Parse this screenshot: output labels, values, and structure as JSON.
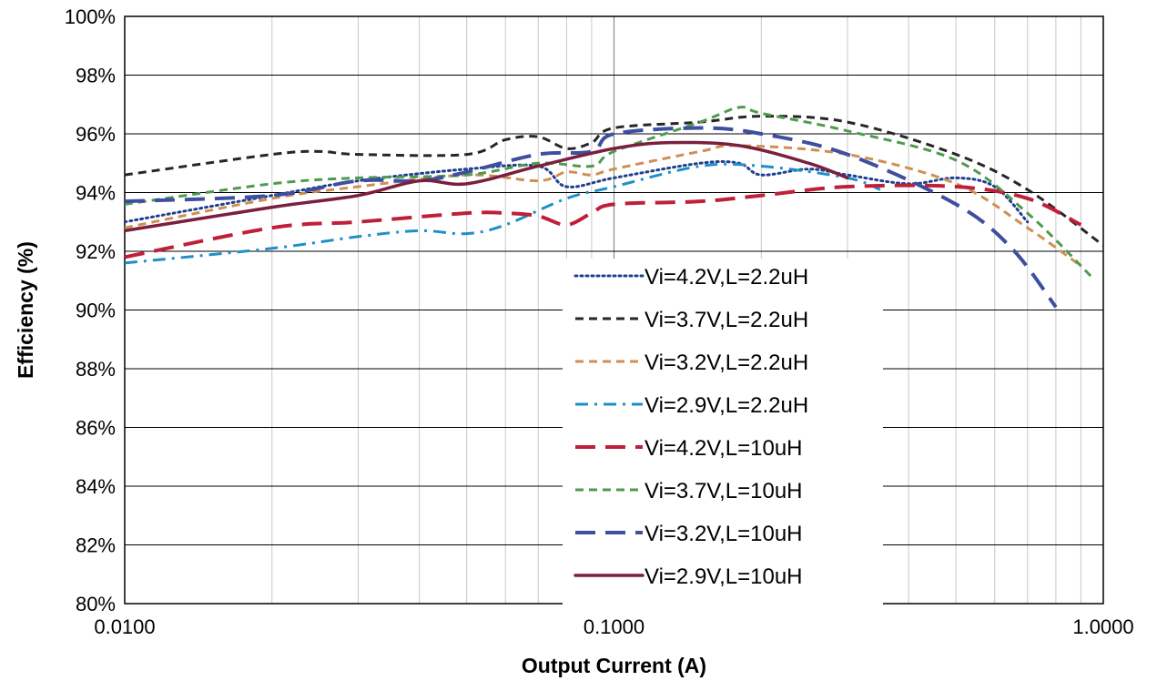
{
  "chart_data": {
    "type": "line",
    "xlabel": "Output Current (A)",
    "ylabel": "Efficiency (%)",
    "x_scale": "log",
    "xlim": [
      0.01,
      1.0
    ],
    "ylim": [
      80,
      100
    ],
    "x_ticks": [
      {
        "value": 0.01,
        "label": "0.0100"
      },
      {
        "value": 0.1,
        "label": "0.1000"
      },
      {
        "value": 1.0,
        "label": "1.0000"
      }
    ],
    "y_ticks": [
      {
        "value": 80,
        "label": "80%"
      },
      {
        "value": 82,
        "label": "82%"
      },
      {
        "value": 84,
        "label": "84%"
      },
      {
        "value": 86,
        "label": "86%"
      },
      {
        "value": 88,
        "label": "88%"
      },
      {
        "value": 90,
        "label": "90%"
      },
      {
        "value": 92,
        "label": "92%"
      },
      {
        "value": 94,
        "label": "94%"
      },
      {
        "value": 96,
        "label": "96%"
      },
      {
        "value": 98,
        "label": "98%"
      },
      {
        "value": 100,
        "label": "100%"
      }
    ],
    "grid": true,
    "legend_position": "center-right",
    "series": [
      {
        "name": "Vi=4.2V,L=2.2uH",
        "color": "#1f3f8f",
        "style": "dotted",
        "x": [
          0.01,
          0.02,
          0.03,
          0.05,
          0.07,
          0.08,
          0.1,
          0.15,
          0.18,
          0.2,
          0.25,
          0.3,
          0.4,
          0.5,
          0.6,
          0.7
        ],
        "y": [
          93.0,
          93.9,
          94.4,
          94.8,
          94.9,
          94.2,
          94.5,
          95.0,
          95.0,
          94.6,
          94.8,
          94.6,
          94.3,
          94.5,
          94.2,
          93.0
        ]
      },
      {
        "name": "Vi=3.7V,L=2.2uH",
        "color": "#262626",
        "style": "dashed",
        "x": [
          0.01,
          0.02,
          0.025,
          0.03,
          0.05,
          0.06,
          0.07,
          0.08,
          0.09,
          0.1,
          0.15,
          0.2,
          0.3,
          0.5,
          0.7,
          1.0
        ],
        "y": [
          94.6,
          95.3,
          95.4,
          95.3,
          95.3,
          95.8,
          95.9,
          95.5,
          95.7,
          96.2,
          96.4,
          96.6,
          96.4,
          95.3,
          94.1,
          92.2
        ]
      },
      {
        "name": "Vi=3.2V,L=2.2uH",
        "color": "#d08f52",
        "style": "dashed",
        "x": [
          0.01,
          0.02,
          0.03,
          0.05,
          0.07,
          0.08,
          0.09,
          0.1,
          0.15,
          0.18,
          0.3,
          0.5,
          0.7,
          0.9
        ],
        "y": [
          92.8,
          93.8,
          94.2,
          94.6,
          94.4,
          94.7,
          94.6,
          94.8,
          95.4,
          95.6,
          95.3,
          94.3,
          92.8,
          91.5
        ]
      },
      {
        "name": "Vi=2.9V,L=2.2uH",
        "color": "#1f8fc8",
        "style": "dashdot",
        "x": [
          0.01,
          0.02,
          0.03,
          0.04,
          0.05,
          0.06,
          0.08,
          0.1,
          0.15,
          0.2,
          0.3,
          0.35
        ],
        "y": [
          91.6,
          92.1,
          92.5,
          92.7,
          92.6,
          92.9,
          93.8,
          94.2,
          94.9,
          94.9,
          94.5,
          94.1
        ]
      },
      {
        "name": "Vi=4.2V,L=10uH",
        "color": "#c01f3a",
        "style": "longdash",
        "x": [
          0.01,
          0.02,
          0.03,
          0.05,
          0.06,
          0.07,
          0.08,
          0.09,
          0.1,
          0.15,
          0.2,
          0.3,
          0.5,
          0.7,
          0.9
        ],
        "y": [
          91.8,
          92.8,
          93.0,
          93.3,
          93.3,
          93.2,
          92.9,
          93.3,
          93.6,
          93.7,
          93.9,
          94.2,
          94.2,
          93.8,
          92.9
        ]
      },
      {
        "name": "Vi=3.7V,L=10uH",
        "color": "#4e9a4e",
        "style": "dashed",
        "x": [
          0.01,
          0.02,
          0.03,
          0.05,
          0.07,
          0.09,
          0.1,
          0.15,
          0.18,
          0.2,
          0.3,
          0.5,
          0.7,
          0.95
        ],
        "y": [
          93.6,
          94.3,
          94.5,
          94.6,
          95.0,
          94.9,
          95.4,
          96.4,
          96.9,
          96.7,
          96.1,
          95.1,
          93.3,
          91.1
        ]
      },
      {
        "name": "Vi=3.2V,L=10uH",
        "color": "#3f4fa0",
        "style": "longdash",
        "x": [
          0.01,
          0.02,
          0.03,
          0.04,
          0.05,
          0.07,
          0.09,
          0.1,
          0.15,
          0.2,
          0.3,
          0.5,
          0.65,
          0.8
        ],
        "y": [
          93.7,
          93.9,
          94.4,
          94.4,
          94.7,
          95.3,
          95.4,
          96.0,
          96.2,
          96.0,
          95.3,
          93.6,
          92.1,
          90.1
        ]
      },
      {
        "name": "Vi=2.9V,L=10uH",
        "color": "#7a1f3d",
        "style": "solid",
        "x": [
          0.01,
          0.02,
          0.03,
          0.04,
          0.05,
          0.07,
          0.1,
          0.13,
          0.18,
          0.25,
          0.3
        ],
        "y": [
          92.7,
          93.5,
          93.9,
          94.4,
          94.3,
          94.9,
          95.5,
          95.7,
          95.6,
          95.0,
          94.5
        ]
      }
    ]
  }
}
